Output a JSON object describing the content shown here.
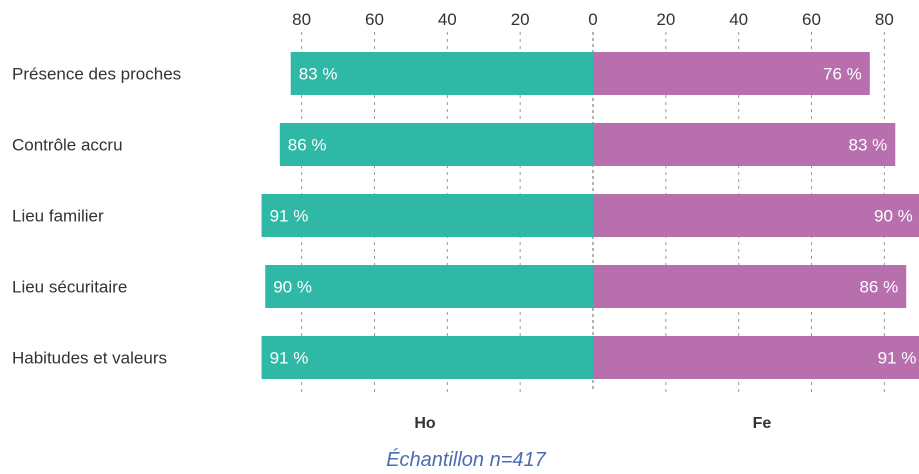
{
  "chart_data": {
    "type": "bar",
    "orientation": "horizontal-diverging",
    "categories": [
      "Présence des proches",
      "Contrôle accru",
      "Lieu familier",
      "Lieu sécuritaire",
      "Habitudes et valeurs"
    ],
    "series": [
      {
        "name": "Ho",
        "values": [
          83,
          86,
          91,
          90,
          91
        ],
        "color": "#2eb8a5",
        "side": "left"
      },
      {
        "name": "Fe",
        "values": [
          76,
          83,
          90,
          86,
          91
        ],
        "color": "#b86fae",
        "side": "right"
      }
    ],
    "value_suffix": " %",
    "xlim": [
      0,
      90
    ],
    "x_ticks": [
      80,
      60,
      40,
      20,
      0,
      20,
      40,
      60,
      80
    ],
    "tick_values": [
      20,
      40,
      60,
      80
    ],
    "grid": true,
    "footnote": "Échantillon n=417"
  }
}
